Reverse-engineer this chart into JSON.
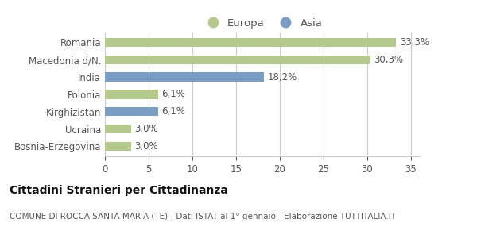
{
  "categories": [
    "Bosnia-Erzegovina",
    "Ucraina",
    "Kirghizistan",
    "Polonia",
    "India",
    "Macedonia d/N.",
    "Romania"
  ],
  "values": [
    3.0,
    3.0,
    6.1,
    6.1,
    18.2,
    30.3,
    33.3
  ],
  "labels": [
    "3,0%",
    "3,0%",
    "6,1%",
    "6,1%",
    "18,2%",
    "30,3%",
    "33,3%"
  ],
  "colors": [
    "#b5c98e",
    "#b5c98e",
    "#7b9dc4",
    "#b5c98e",
    "#7b9dc4",
    "#b5c98e",
    "#b5c98e"
  ],
  "legend_entries": [
    {
      "label": "Europa",
      "color": "#b5c98e"
    },
    {
      "label": "Asia",
      "color": "#7b9dc4"
    }
  ],
  "xlim": [
    0,
    36
  ],
  "xticks": [
    0,
    5,
    10,
    15,
    20,
    25,
    30,
    35
  ],
  "title_main": "Cittadini Stranieri per Cittadinanza",
  "title_sub": "COMUNE DI ROCCA SANTA MARIA (TE) - Dati ISTAT al 1° gennaio - Elaborazione TUTTITALIA.IT",
  "bg_color": "#ffffff",
  "grid_color": "#cccccc",
  "bar_height": 0.52,
  "label_fontsize": 8.5,
  "tick_fontsize": 8.5,
  "legend_fontsize": 9.5,
  "title_main_fontsize": 10,
  "title_sub_fontsize": 7.5,
  "text_color": "#555555",
  "title_color": "#111111"
}
